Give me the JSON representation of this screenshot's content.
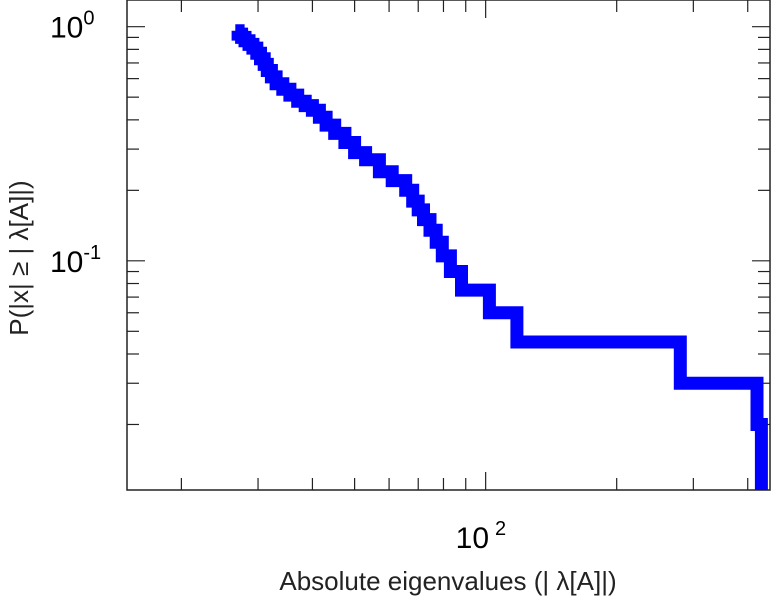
{
  "chart_data": {
    "type": "line",
    "title": "",
    "xlabel": "Absolute eigenvalues (|     λ[A]|)",
    "ylabel": "P(|x|  ≥ | λ[A]|)",
    "xscale": "log",
    "yscale": "log",
    "xlim": [
      15,
      450
    ],
    "ylim": [
      0.0105,
      1.3
    ],
    "x_tick_labels": [
      {
        "value": 100,
        "base": "10",
        "exp": "2"
      }
    ],
    "y_tick_labels": [
      {
        "value": 1,
        "base": "10",
        "exp": "0"
      },
      {
        "value": 0.1,
        "base": "10",
        "exp": "-1"
      }
    ],
    "grid": false,
    "series": [
      {
        "color": "#0000ff",
        "line_style": "step",
        "x": [
          26.6,
          27.0,
          27.5,
          28.0,
          28.6,
          29.2,
          29.8,
          30.4,
          31.0,
          31.5,
          32.2,
          33.0,
          34.2,
          35.5,
          37.0,
          38.5,
          40.0,
          41.5,
          43.0,
          45.0,
          47.5,
          50.0,
          53.0,
          57.0,
          61.0,
          65.5,
          68.0,
          70.0,
          72.0,
          74.5,
          77.0,
          79.5,
          83.0,
          88.0,
          102.0,
          118.0,
          280.0,
          420.0,
          430.0
        ],
        "y": [
          0.96,
          0.93,
          0.9,
          0.87,
          0.84,
          0.81,
          0.77,
          0.73,
          0.69,
          0.65,
          0.61,
          0.57,
          0.54,
          0.51,
          0.48,
          0.46,
          0.44,
          0.41,
          0.38,
          0.35,
          0.32,
          0.29,
          0.27,
          0.24,
          0.22,
          0.2,
          0.18,
          0.165,
          0.15,
          0.135,
          0.12,
          0.105,
          0.09,
          0.075,
          0.06,
          0.045,
          0.03,
          0.02,
          0.012
        ]
      }
    ]
  }
}
